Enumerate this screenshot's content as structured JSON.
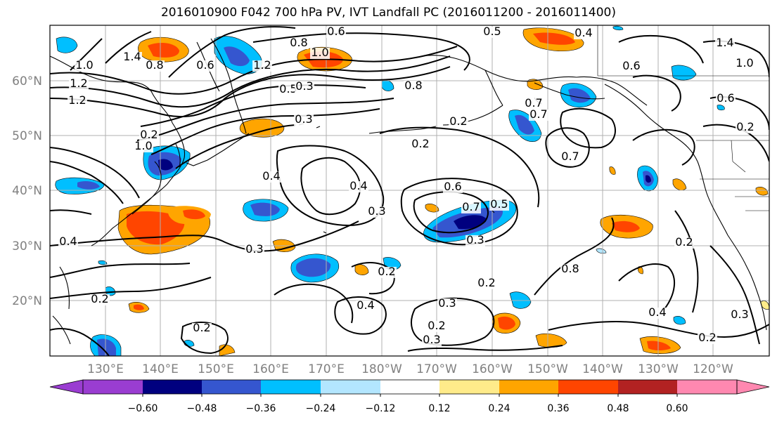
{
  "title": "2016010900 F042 700 hPa PV, IVT Landfall PC (2016011200 - 2016011400)",
  "lat_labels": [
    "20°N",
    "30°N",
    "40°N",
    "50°N",
    "60°N"
  ],
  "lon_labels": [
    "130°E",
    "140°E",
    "150°E",
    "160°E",
    "170°E",
    "180°W",
    "170°W",
    "160°W",
    "150°W",
    "140°W",
    "130°W",
    "120°W"
  ],
  "contour_labels": [
    "0.6",
    "0.5",
    "0.4",
    "1.4",
    "1.0",
    "0.8",
    "1.0",
    "1.2",
    "0.6",
    "0.8",
    "1.0",
    "1.2",
    "1.2",
    "0.5",
    "0.3",
    "0.2",
    "0.2",
    "0.2",
    "0.4",
    "0.3",
    "0.6",
    "0.7",
    "0.5",
    "0.3",
    "0.3",
    "0.4",
    "0.2",
    "0.4",
    "0.2",
    "0.3",
    "0.2",
    "0.3",
    "0.2",
    "0.2",
    "0.4",
    "0.3",
    "0.2",
    "0.8",
    "0.7",
    "0.7",
    "0.8",
    "0.7",
    "1.4",
    "1.0",
    "0.6",
    "0.6",
    "0.2",
    "0.4",
    "0.2",
    "0.3"
  ],
  "colorbar": {
    "ticks": [
      "−0.60",
      "−0.48",
      "−0.36",
      "−0.24",
      "−0.12",
      "0.12",
      "0.24",
      "0.36",
      "0.48",
      "0.60"
    ],
    "colors": [
      "#9a3dd1",
      "#00007f",
      "#3556cf",
      "#00bfff",
      "#b3e6ff",
      "#ffffff",
      "#ffeb8a",
      "#ffa500",
      "#ff4500",
      "#b22222",
      "#ff88b0"
    ]
  }
}
